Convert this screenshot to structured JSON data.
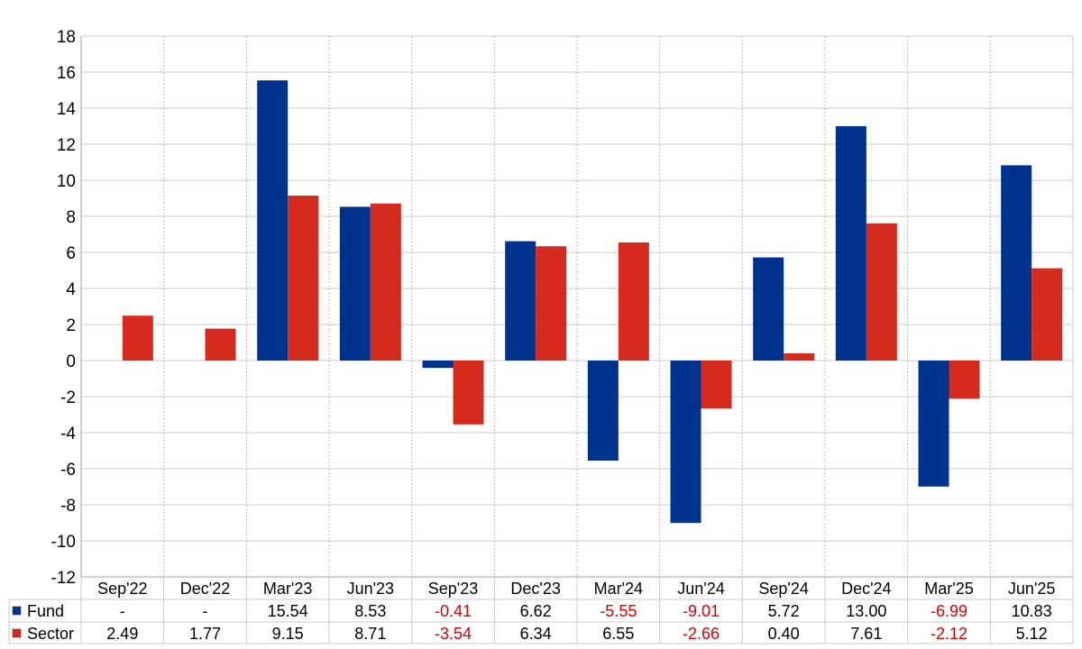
{
  "chart_data": {
    "type": "bar",
    "title": "",
    "xlabel": "",
    "ylabel": "",
    "ylim": [
      -12,
      18
    ],
    "ytick_step": 2,
    "grid": true,
    "legend": "table-left",
    "categories": [
      "Sep'22",
      "Dec'22",
      "Mar'23",
      "Jun'23",
      "Sep'23",
      "Dec'23",
      "Mar'24",
      "Jun'24",
      "Sep'24",
      "Dec'24",
      "Mar'25",
      "Jun'25"
    ],
    "series": [
      {
        "name": "Fund",
        "color": "#00338d",
        "values": [
          null,
          null,
          15.54,
          8.53,
          -0.41,
          6.62,
          -5.55,
          -9.01,
          5.72,
          13.0,
          -6.99,
          10.83
        ],
        "labels": [
          "-",
          "-",
          "15.54",
          "8.53",
          "-0.41",
          "6.62",
          "-5.55",
          "-9.01",
          "5.72",
          "13.00",
          "-6.99",
          "10.83"
        ]
      },
      {
        "name": "Sector",
        "color": "#d52b1e",
        "values": [
          2.49,
          1.77,
          9.15,
          8.71,
          -3.54,
          6.34,
          6.55,
          -2.66,
          0.4,
          7.61,
          -2.12,
          5.12
        ],
        "labels": [
          "2.49",
          "1.77",
          "9.15",
          "8.71",
          "-3.54",
          "6.34",
          "6.55",
          "-2.66",
          "0.40",
          "7.61",
          "-2.12",
          "5.12"
        ]
      }
    ],
    "negative_label_color": "#e00000"
  }
}
